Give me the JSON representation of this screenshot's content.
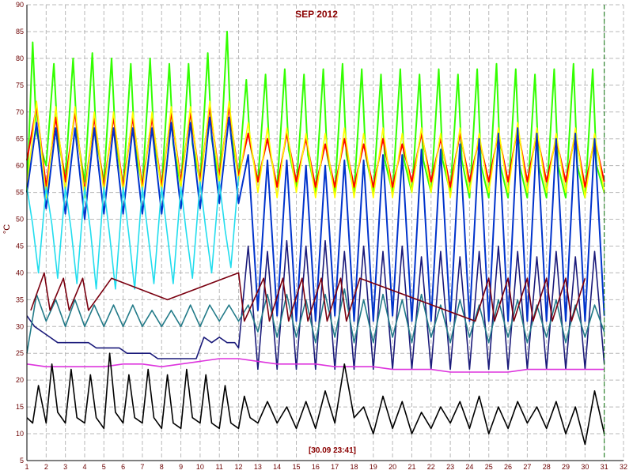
{
  "chart_data": {
    "type": "line",
    "title": "SEP 2012",
    "ylabel": "°C",
    "footer_timestamp": "[30.09 23:41]",
    "xlim": [
      1,
      32
    ],
    "ylim": [
      5,
      90
    ],
    "x_ticks": [
      1,
      2,
      3,
      4,
      5,
      6,
      7,
      8,
      9,
      10,
      11,
      12,
      13,
      14,
      15,
      16,
      17,
      18,
      19,
      20,
      21,
      22,
      23,
      24,
      25,
      26,
      27,
      28,
      29,
      30,
      31,
      32
    ],
    "y_ticks": [
      5,
      10,
      15,
      20,
      25,
      30,
      35,
      40,
      45,
      50,
      55,
      60,
      65,
      70,
      75,
      80,
      85,
      90
    ],
    "grid": true,
    "now_marker_x": 31,
    "series": [
      {
        "color": "#33ff00",
        "x": [
          1,
          1.3,
          1.5,
          2,
          2.4,
          2.6,
          3,
          3.4,
          3.6,
          4,
          4.4,
          4.6,
          5,
          5.4,
          5.6,
          6,
          6.4,
          6.6,
          7,
          7.4,
          7.6,
          8,
          8.4,
          8.6,
          9,
          9.4,
          9.6,
          10,
          10.4,
          10.6,
          11,
          11.4,
          11.6,
          12,
          12.4,
          12.6,
          13,
          13.4,
          13.6,
          14,
          14.4,
          14.6,
          15,
          15.4,
          15.6,
          16,
          16.4,
          16.6,
          17,
          17.4,
          17.6,
          18,
          18.4,
          18.6,
          19,
          19.4,
          19.6,
          20,
          20.4,
          20.6,
          21,
          21.4,
          21.6,
          22,
          22.4,
          22.6,
          23,
          23.4,
          23.6,
          24,
          24.4,
          24.6,
          25,
          25.4,
          25.6,
          26,
          26.4,
          26.6,
          27,
          27.4,
          27.6,
          28,
          28.4,
          28.6,
          29,
          29.4,
          29.6,
          30,
          30.4,
          30.6,
          31
        ],
        "y": [
          55,
          83,
          66,
          60,
          79,
          65,
          58,
          80,
          66,
          57,
          81,
          65,
          57,
          80,
          65,
          56,
          79,
          64,
          56,
          80,
          65,
          56,
          79,
          64,
          56,
          79,
          64,
          57,
          81,
          65,
          57,
          85,
          66,
          58,
          76,
          64,
          57,
          77,
          63,
          56,
          78,
          63,
          56,
          77,
          62,
          55,
          78,
          62,
          55,
          79,
          62,
          55,
          78,
          62,
          55,
          77,
          61,
          55,
          78,
          61,
          55,
          77,
          61,
          55,
          78,
          61,
          55,
          77,
          61,
          54,
          78,
          60,
          54,
          79,
          60,
          54,
          78,
          60,
          54,
          77,
          60,
          54,
          78,
          60,
          54,
          79,
          60,
          54,
          78,
          60,
          55
        ]
      },
      {
        "color": "#ff0000",
        "x": [
          1,
          1.5,
          2,
          2.5,
          3,
          3.5,
          4,
          4.5,
          5,
          5.5,
          6,
          6.5,
          7,
          7.5,
          8,
          8.5,
          9,
          9.5,
          10,
          10.5,
          11,
          11.5,
          12,
          12.5,
          13,
          13.5,
          14,
          14.5,
          15,
          15.5,
          16,
          16.5,
          17,
          17.5,
          18,
          18.5,
          19,
          19.5,
          20,
          20.5,
          21,
          21.5,
          22,
          22.5,
          23,
          23.5,
          24,
          24.5,
          25,
          25.5,
          26,
          26.5,
          27,
          27.5,
          28,
          28.5,
          29,
          29.5,
          30,
          30.5,
          31
        ],
        "y": [
          61,
          71,
          56,
          69,
          57,
          70,
          55,
          69,
          56,
          69,
          56,
          69,
          56,
          69,
          56,
          70,
          57,
          70,
          57,
          71,
          58,
          71,
          58,
          66,
          57,
          65,
          56,
          66,
          57,
          65,
          56,
          64,
          56,
          65,
          56,
          64,
          56,
          65,
          56,
          64,
          57,
          66,
          57,
          65,
          56,
          66,
          57,
          65,
          57,
          66,
          57,
          67,
          57,
          66,
          57,
          65,
          57,
          66,
          56,
          65,
          57
        ]
      },
      {
        "color": "#ffff00",
        "x": [
          1,
          1.5,
          2,
          2.5,
          3,
          3.5,
          4,
          4.5,
          5,
          5.5,
          6,
          6.5,
          7,
          7.5,
          8,
          8.5,
          9,
          9.5,
          10,
          10.5,
          11,
          11.5,
          12,
          12.5,
          13,
          13.5,
          14,
          14.5,
          15,
          15.5,
          16,
          16.5,
          17,
          17.5,
          18,
          18.5,
          19,
          19.5,
          20,
          20.5,
          21,
          21.5,
          22,
          22.5,
          23,
          23.5,
          24,
          24.5,
          25,
          25.5,
          26,
          26.5,
          27,
          27.5,
          28,
          28.5,
          29,
          29.5,
          30,
          30.5,
          31
        ],
        "y": [
          56,
          72,
          54,
          71,
          55,
          71,
          54,
          70,
          55,
          70,
          55,
          70,
          55,
          70,
          55,
          71,
          56,
          71,
          56,
          72,
          57,
          72,
          57,
          68,
          55,
          67,
          54,
          67,
          55,
          66,
          54,
          66,
          54,
          67,
          54,
          66,
          54,
          67,
          54,
          66,
          55,
          67,
          55,
          66,
          54,
          67,
          55,
          66,
          55,
          67,
          55,
          68,
          55,
          67,
          55,
          66,
          55,
          67,
          54,
          66,
          55
        ]
      },
      {
        "color": "#0033cc",
        "x": [
          1,
          1.5,
          2,
          2.5,
          3,
          3.5,
          4,
          4.5,
          5,
          5.5,
          6,
          6.5,
          7,
          7.5,
          8,
          8.5,
          9,
          9.5,
          10,
          10.5,
          11,
          11.5,
          12,
          12.5,
          13,
          13.5,
          14,
          14.5,
          15,
          15.5,
          16,
          16.5,
          17,
          17.5,
          18,
          18.5,
          19,
          19.5,
          20,
          20.5,
          21,
          21.5,
          22,
          22.5,
          23,
          23.5,
          24,
          24.5,
          25,
          25.5,
          26,
          26.5,
          27,
          27.5,
          28,
          28.5,
          29,
          29.5,
          30,
          30.5,
          31
        ],
        "y": [
          55,
          68,
          52,
          67,
          51,
          67,
          50,
          67,
          51,
          67,
          51,
          67,
          51,
          67,
          51,
          68,
          52,
          68,
          52,
          69,
          53,
          69,
          53,
          62,
          33,
          61,
          32,
          61,
          31,
          60,
          31,
          60,
          32,
          61,
          31,
          61,
          31,
          62,
          32,
          62,
          31,
          63,
          31,
          63,
          31,
          64,
          31,
          65,
          31,
          66,
          31,
          67,
          31,
          66,
          31,
          65,
          31,
          66,
          31,
          65,
          32
        ]
      },
      {
        "color": "#22ddee",
        "x": [
          1,
          1.3,
          1.6,
          2,
          2.3,
          2.6,
          3,
          3.3,
          3.6,
          4,
          4.3,
          4.6,
          5,
          5.3,
          5.6,
          6,
          6.3,
          6.6,
          7,
          7.3,
          7.6,
          8,
          8.3,
          8.6,
          9,
          9.3,
          9.6,
          10,
          10.3,
          10.6,
          11,
          11.3,
          11.6,
          12
        ],
        "y": [
          56,
          49,
          40,
          56,
          49,
          39,
          56,
          48,
          38,
          56,
          48,
          37,
          56,
          47,
          37,
          56,
          47,
          37,
          56,
          47,
          38,
          56,
          47,
          38,
          56,
          47,
          39,
          57,
          48,
          40,
          57,
          48,
          41,
          58
        ]
      },
      {
        "color": "#1a1a7a",
        "x": [
          1,
          1.4,
          1.8,
          2.2,
          2.6,
          3,
          3.4,
          3.8,
          4.2,
          4.6,
          5,
          5.4,
          5.8,
          6.2,
          6.6,
          7,
          7.4,
          7.8,
          8.2,
          8.6,
          9,
          9.4,
          9.8,
          10.2,
          10.6,
          11,
          11.4,
          11.8,
          12,
          12.5,
          13,
          13.5,
          14,
          14.5,
          15,
          15.5,
          16,
          16.5,
          17,
          17.5,
          18,
          18.5,
          19,
          19.5,
          20,
          20.5,
          21,
          21.5,
          22,
          22.5,
          23,
          23.5,
          24,
          24.5,
          25,
          25.5,
          26,
          26.5,
          27,
          27.5,
          28,
          28.5,
          29,
          29.5,
          30,
          30.5,
          31
        ],
        "y": [
          32,
          30,
          29,
          28,
          27,
          27,
          27,
          27,
          27,
          26,
          26,
          26,
          26,
          25,
          25,
          25,
          25,
          24,
          24,
          24,
          24,
          24,
          24,
          28,
          27,
          28,
          27,
          27,
          26,
          45,
          22,
          44,
          22,
          46,
          22,
          45,
          22,
          46,
          22,
          44,
          22,
          45,
          22,
          44,
          22,
          45,
          22,
          43,
          22,
          44,
          22,
          43,
          22,
          44,
          22,
          45,
          22,
          44,
          22,
          43,
          22,
          44,
          22,
          43,
          22,
          44,
          23
        ]
      },
      {
        "color": "#227a88",
        "x": [
          1,
          1.5,
          2,
          2.5,
          3,
          3.5,
          4,
          4.5,
          5,
          5.5,
          6,
          6.5,
          7,
          7.5,
          8,
          8.5,
          9,
          9.5,
          10,
          10.5,
          11,
          11.5,
          12,
          12.5,
          13,
          13.5,
          14,
          14.5,
          15,
          15.5,
          16,
          16.5,
          17,
          17.5,
          18,
          18.5,
          19,
          19.5,
          20,
          20.5,
          21,
          21.5,
          22,
          22.5,
          23,
          23.5,
          24,
          24.5,
          25,
          25.5,
          26,
          26.5,
          27,
          27.5,
          28,
          28.5,
          29,
          29.5,
          30,
          30.5,
          31
        ],
        "y": [
          25,
          36,
          31,
          35,
          30,
          35,
          30,
          34,
          30,
          34,
          30,
          34,
          30,
          33,
          30,
          33,
          30,
          34,
          30,
          34,
          31,
          34,
          31,
          34,
          29,
          36,
          28,
          36,
          28,
          35,
          27,
          36,
          28,
          37,
          27,
          35,
          27,
          36,
          28,
          35,
          27,
          36,
          28,
          34,
          27,
          35,
          28,
          34,
          27,
          35,
          28,
          35,
          27,
          34,
          28,
          35,
          27,
          34,
          28,
          34,
          29
        ]
      },
      {
        "color": "#7a0010",
        "x": [
          1.2,
          1.9,
          2.2,
          2.9,
          3.2,
          3.9,
          4.2,
          5.4,
          8.3,
          12.0,
          12.3,
          13.3,
          13.6,
          14.3,
          14.6,
          15.3,
          15.6,
          16.3,
          16.6,
          17.3,
          17.6,
          18.3,
          24.3,
          25.0,
          25.3,
          26.0,
          26.3,
          27.0,
          27.3,
          28.0,
          28.3,
          29.0,
          29.3,
          30.0
        ],
        "y": [
          33,
          40,
          33,
          39,
          33,
          39,
          33,
          39,
          35,
          40,
          31,
          39,
          31,
          39,
          31,
          39,
          31,
          39,
          31,
          39,
          31,
          39,
          31,
          39,
          31,
          39,
          31,
          39,
          31,
          39,
          31,
          39,
          31,
          39
        ]
      },
      {
        "color": "#dd33dd",
        "x": [
          1,
          2,
          3,
          4,
          5,
          6,
          7,
          8,
          9,
          10,
          11,
          12,
          13,
          14,
          15,
          16,
          17,
          18,
          19,
          20,
          21,
          22,
          23,
          24,
          25,
          26,
          27,
          28,
          29,
          30,
          31
        ],
        "y": [
          23,
          22.5,
          22.5,
          22.5,
          22.5,
          23,
          23,
          22.5,
          23,
          23.5,
          24,
          24,
          23.5,
          23,
          23,
          23,
          22.5,
          22.5,
          22.5,
          22,
          22,
          22,
          21.5,
          21.5,
          21.5,
          21.5,
          22,
          22,
          22,
          22,
          22
        ]
      },
      {
        "color": "#000000",
        "x": [
          1,
          1.3,
          1.6,
          2,
          2.3,
          2.6,
          3,
          3.3,
          3.6,
          4,
          4.3,
          4.6,
          5,
          5.3,
          5.6,
          6,
          6.3,
          6.6,
          7,
          7.3,
          7.6,
          8,
          8.3,
          8.6,
          9,
          9.3,
          9.6,
          10,
          10.3,
          10.6,
          11,
          11.3,
          11.6,
          12,
          12.3,
          12.6,
          13,
          13.5,
          14,
          14.5,
          15,
          15.5,
          16,
          16.5,
          17,
          17.5,
          18,
          18.5,
          19,
          19.5,
          20,
          20.5,
          21,
          21.5,
          22,
          22.5,
          23,
          23.5,
          24,
          24.5,
          25,
          25.5,
          26,
          26.5,
          27,
          27.5,
          28,
          28.5,
          29,
          29.5,
          30,
          30.5,
          31
        ],
        "y": [
          13,
          12,
          19,
          12,
          23,
          14,
          12,
          22,
          13,
          12,
          21,
          13,
          11,
          25,
          14,
          12,
          21,
          13,
          12,
          22,
          13,
          11,
          21,
          12,
          11,
          22,
          13,
          12,
          21,
          12,
          11,
          19,
          12,
          11,
          17,
          13,
          12,
          16,
          12,
          15,
          11,
          16,
          11,
          18,
          12,
          23,
          13,
          15,
          10,
          17,
          11,
          16,
          10,
          14,
          11,
          15,
          12,
          16,
          11,
          17,
          10,
          15,
          11,
          16,
          12,
          15,
          11,
          16,
          10,
          15,
          8,
          18,
          10
        ]
      }
    ]
  }
}
